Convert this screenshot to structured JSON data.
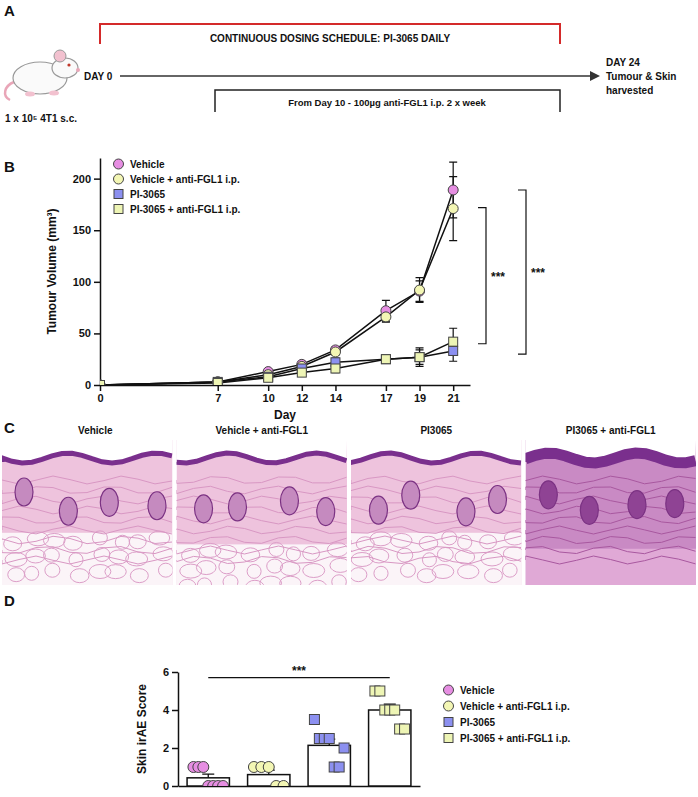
{
  "schematic": {
    "label": "A",
    "start": "DAY 0",
    "dosing": "CONTINUOUS DOSING SCHEDULE: PI-3065 DAILY",
    "treatment": "From Day 10 - 100µg anti-FGL1 i.p. 2 x week",
    "end": [
      "DAY 24",
      "Tumour & Skin",
      "harvested"
    ],
    "inoculation": "1 x 10⁵ 4T1 s.c."
  },
  "chart_data": [
    {
      "panel": "B",
      "type": "line",
      "x_label": "Day",
      "y_label": "Tumour Volume (mm³)",
      "x": [
        0,
        7,
        10,
        12,
        14,
        17,
        19,
        21
      ],
      "xlim": [
        0,
        22
      ],
      "xticks": [
        0,
        7,
        10,
        12,
        14,
        17,
        19,
        21
      ],
      "ylim": [
        0,
        220
      ],
      "yticks": [
        0,
        50,
        100,
        150,
        200
      ],
      "legend": "top-left",
      "series": [
        {
          "name": "Vehicle",
          "color": "#e68ee2",
          "marker": "circle",
          "values": [
            0,
            3,
            13,
            20,
            34,
            72,
            91,
            189
          ],
          "errors": [
            0,
            1,
            2,
            3,
            3,
            10,
            10,
            27
          ]
        },
        {
          "name": "Vehicle + anti-FGL1 i.p.",
          "color": "#f3f6b4",
          "marker": "circle",
          "values": [
            0,
            3,
            10,
            18,
            32,
            66,
            92,
            171
          ],
          "errors": [
            0,
            1,
            2,
            2,
            3,
            5,
            12,
            31
          ]
        },
        {
          "name": "PI-3065",
          "color": "#8c90f0",
          "marker": "square",
          "values": [
            0,
            3,
            8,
            16,
            22,
            25,
            27,
            33
          ],
          "errors": [
            0,
            1,
            2,
            3,
            4,
            3,
            9,
            10
          ]
        },
        {
          "name": "PI-3065 + anti-FGL1 i.p.",
          "color": "#eef5b5",
          "marker": "square",
          "values": [
            0,
            2,
            7,
            12,
            16,
            25,
            27,
            42
          ],
          "errors": [
            0,
            1,
            2,
            3,
            4,
            4,
            7,
            13
          ]
        }
      ],
      "annotations": [
        {
          "text": "***",
          "y": [
            172,
            40
          ]
        },
        {
          "text": "***",
          "y": [
            189,
            30
          ]
        }
      ]
    },
    {
      "panel": "D",
      "type": "bar",
      "y_label": "Skin irAE Score",
      "categories": [
        null,
        null,
        null,
        null
      ],
      "values": [
        0.43,
        0.6,
        2.14,
        4.0
      ],
      "errors": [
        0.2,
        0.24,
        0.33,
        0.31
      ],
      "ylim": [
        0,
        6
      ],
      "yticks": [
        0,
        2,
        4,
        6
      ],
      "tick_labels": "y",
      "legend": "right",
      "series": [
        {
          "name": "Vehicle",
          "color": "#e68ee2",
          "marker": "circle",
          "points": [
            1,
            1,
            1,
            0,
            0,
            0,
            0
          ]
        },
        {
          "name": "Vehicle + anti-FGL1 i.p.",
          "color": "#f3f6b4",
          "marker": "circle",
          "points": [
            1,
            1,
            1,
            0,
            0
          ]
        },
        {
          "name": "PI-3065",
          "color": "#8c90f0",
          "marker": "square",
          "points": [
            3.5,
            2.5,
            2.5,
            2.5,
            1,
            1,
            2
          ]
        },
        {
          "name": "PI-3065 + anti-FGL1 i.p.",
          "color": "#eef5b5",
          "marker": "square",
          "points": [
            5,
            5,
            4,
            4,
            4,
            3,
            3
          ]
        }
      ],
      "annotations": [
        {
          "text": "***",
          "from": 0,
          "to": 3,
          "y": 5.7
        }
      ]
    }
  ],
  "histology": {
    "label": "C",
    "panels": [
      "Vehicle",
      "Vehicle + anti-FGL1",
      "PI3065",
      "PI3065 + anti-FGL1"
    ]
  }
}
